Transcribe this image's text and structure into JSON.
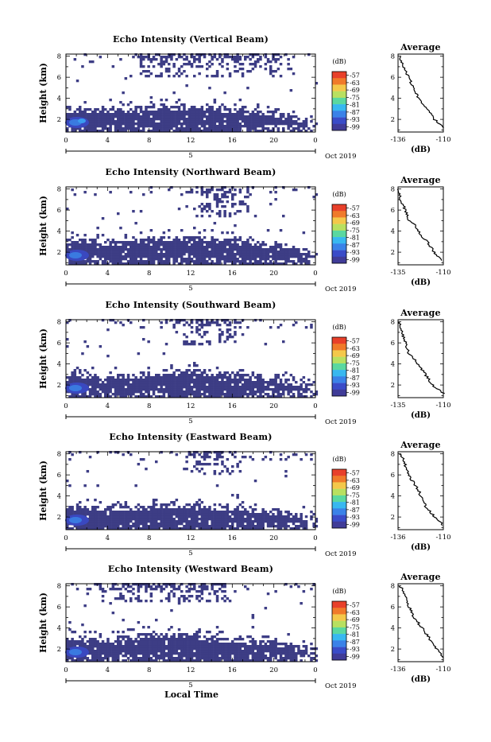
{
  "figure": {
    "xlabel": "Local Time",
    "month_label": "Oct 2019",
    "day_label": "5"
  },
  "chart_data": [
    {
      "type": "heatmap",
      "title": "Echo Intensity (Vertical Beam)",
      "ylabel": "Height (km)",
      "xlabel": "Local Time",
      "xlim": [
        0,
        24
      ],
      "ylim": [
        0.8,
        8.2
      ],
      "xticks": [
        "0",
        "4",
        "8",
        "12",
        "16",
        "20",
        "0"
      ],
      "yticks": [
        "2",
        "4",
        "6",
        "8"
      ],
      "colorbar": {
        "unit": "(dB)",
        "ticks": [
          "-57",
          "-63",
          "-69",
          "-75",
          "-81",
          "-87",
          "-93",
          "-99"
        ],
        "range": [
          -102,
          -54
        ]
      },
      "layers": [
        {
          "name": "low-cloud",
          "x_start": 0,
          "x_end": 23.5,
          "top_km": [
            3.2,
            3.1,
            3.0,
            3.1,
            3.3,
            3.4,
            3.4,
            3.3,
            3.1,
            2.9,
            2.8,
            2.4,
            1.9
          ]
        },
        {
          "name": "upper-cloud",
          "x_start": 6.2,
          "x_end": 22.0,
          "bottom_km": 6.0,
          "top_km": 8.0
        }
      ],
      "avg_profile": {
        "title": "Average",
        "xlabel": "(dB)",
        "xlim": [
          -136,
          -110
        ],
        "xticks": [
          "-136",
          "-110"
        ],
        "ylim": [
          0.8,
          8.2
        ],
        "yticks": [
          "2",
          "4",
          "6",
          "8"
        ],
        "height_km": [
          1.2,
          2.0,
          3.0,
          4.0,
          5.0,
          6.0,
          6.8,
          7.5,
          8.0
        ],
        "values_db": [
          -110,
          -115,
          -119,
          -124,
          -127,
          -130,
          -132.5,
          -134,
          -135
        ]
      }
    },
    {
      "type": "heatmap",
      "title": "Echo Intensity (Northward Beam)",
      "ylabel": "Height (km)",
      "xlabel": "Local Time",
      "xlim": [
        0,
        24
      ],
      "ylim": [
        0.8,
        8.2
      ],
      "xticks": [
        "0",
        "4",
        "8",
        "12",
        "16",
        "20",
        "0"
      ],
      "yticks": [
        "2",
        "4",
        "6",
        "8"
      ],
      "colorbar": {
        "unit": "(dB)",
        "ticks": [
          "-57",
          "-63",
          "-69",
          "-75",
          "-81",
          "-87",
          "-93",
          "-99"
        ],
        "range": [
          -102,
          -54
        ]
      },
      "layers": [
        {
          "name": "low-cloud",
          "x_start": 0,
          "x_end": 24,
          "top_km": [
            3.4,
            3.3,
            3.1,
            3.2,
            3.5,
            3.6,
            3.6,
            3.5,
            3.3,
            3.0,
            2.9,
            2.6,
            2.1
          ]
        },
        {
          "name": "upper-cloud",
          "x_start": 11.5,
          "x_end": 17.5,
          "bottom_km": 5.3,
          "top_km": 8.0
        }
      ],
      "avg_profile": {
        "title": "Average",
        "xlabel": "(dB)",
        "xlim": [
          -135,
          -110
        ],
        "xticks": [
          "-135",
          "-110"
        ],
        "ylim": [
          0.8,
          8.2
        ],
        "yticks": [
          "2",
          "4",
          "6",
          "8"
        ],
        "height_km": [
          1.2,
          2.0,
          3.0,
          4.0,
          4.5,
          5.0,
          6.0,
          7.0,
          8.0
        ],
        "values_db": [
          -111,
          -115,
          -119,
          -124,
          -125,
          -129,
          -131,
          -133.5,
          -135
        ]
      }
    },
    {
      "type": "heatmap",
      "title": "Echo Intensity (Southward Beam)",
      "ylabel": "Height (km)",
      "xlabel": "Local Time",
      "xlim": [
        0,
        24
      ],
      "ylim": [
        0.8,
        8.2
      ],
      "xticks": [
        "0",
        "4",
        "8",
        "12",
        "16",
        "20",
        "0"
      ],
      "yticks": [
        "2",
        "4",
        "6",
        "8"
      ],
      "colorbar": {
        "unit": "(dB)",
        "ticks": [
          "-57",
          "-63",
          "-69",
          "-75",
          "-81",
          "-87",
          "-93",
          "-99"
        ],
        "range": [
          -102,
          -54
        ]
      },
      "layers": [
        {
          "name": "low-cloud",
          "x_start": 0,
          "x_end": 24,
          "top_km": [
            3.3,
            3.2,
            3.0,
            3.1,
            3.3,
            3.5,
            3.5,
            3.4,
            3.2,
            2.9,
            2.8,
            2.5,
            2.0
          ]
        },
        {
          "name": "upper-cloud",
          "x_start": 10.5,
          "x_end": 17.5,
          "bottom_km": 5.8,
          "top_km": 8.0
        }
      ],
      "avg_profile": {
        "title": "Average",
        "xlabel": "(dB)",
        "xlim": [
          -135,
          -110
        ],
        "xticks": [
          "-135",
          "-110"
        ],
        "ylim": [
          0.8,
          8.2
        ],
        "yticks": [
          "2",
          "4",
          "6",
          "8"
        ],
        "height_km": [
          1.2,
          2.0,
          3.0,
          3.8,
          4.2,
          5.0,
          6.0,
          7.0,
          8.0
        ],
        "values_db": [
          -110,
          -116,
          -120,
          -123,
          -125,
          -129,
          -131,
          -133,
          -134.5
        ]
      }
    },
    {
      "type": "heatmap",
      "title": "Echo Intensity (Eastward Beam)",
      "ylabel": "Height (km)",
      "xlabel": "Local Time",
      "xlim": [
        0,
        24
      ],
      "ylim": [
        0.8,
        8.2
      ],
      "xticks": [
        "0",
        "4",
        "8",
        "12",
        "16",
        "20",
        "0"
      ],
      "yticks": [
        "2",
        "4",
        "6",
        "8"
      ],
      "colorbar": {
        "unit": "(dB)",
        "ticks": [
          "-57",
          "-63",
          "-69",
          "-75",
          "-81",
          "-87",
          "-93",
          "-99"
        ],
        "range": [
          -102,
          -54
        ]
      },
      "layers": [
        {
          "name": "low-cloud",
          "x_start": 0,
          "x_end": 24,
          "top_km": [
            3.2,
            3.1,
            3.0,
            3.0,
            3.2,
            3.4,
            3.4,
            3.3,
            3.1,
            2.9,
            2.8,
            2.4,
            2.0
          ]
        },
        {
          "name": "upper-cloud",
          "x_start": 11.0,
          "x_end": 17.0,
          "bottom_km": 6.0,
          "top_km": 8.0
        }
      ],
      "avg_profile": {
        "title": "Average",
        "xlabel": "(dB)",
        "xlim": [
          -136,
          -110
        ],
        "xticks": [
          "-136",
          "-110"
        ],
        "ylim": [
          0.8,
          8.2
        ],
        "yticks": [
          "2",
          "4",
          "6",
          "8"
        ],
        "height_km": [
          1.2,
          2.0,
          3.0,
          4.0,
          4.5,
          5.5,
          6.5,
          7.5,
          8.0
        ],
        "values_db": [
          -110,
          -115,
          -120,
          -123,
          -124,
          -128,
          -131,
          -133,
          -135
        ]
      }
    },
    {
      "type": "heatmap",
      "title": "Echo Intensity (Westward Beam)",
      "ylabel": "Height (km)",
      "xlabel": "Local Time",
      "xlim": [
        0,
        24
      ],
      "ylim": [
        0.8,
        8.2
      ],
      "xticks": [
        "0",
        "4",
        "8",
        "12",
        "16",
        "20",
        "0"
      ],
      "yticks": [
        "2",
        "4",
        "6",
        "8"
      ],
      "colorbar": {
        "unit": "(dB)",
        "ticks": [
          "-57",
          "-63",
          "-69",
          "-75",
          "-81",
          "-87",
          "-93",
          "-99"
        ],
        "range": [
          -102,
          -54
        ]
      },
      "layers": [
        {
          "name": "low-cloud",
          "x_start": 0,
          "x_end": 24,
          "top_km": [
            3.3,
            3.2,
            3.1,
            3.3,
            3.6,
            3.6,
            3.5,
            3.3,
            3.1,
            2.9,
            2.8,
            2.5,
            2.1
          ]
        },
        {
          "name": "upper-cloud",
          "x_start": 3.0,
          "x_end": 16.5,
          "bottom_km": 6.5,
          "top_km": 8.0
        }
      ],
      "avg_profile": {
        "title": "Average",
        "xlabel": "(dB)",
        "xlim": [
          -136,
          -110
        ],
        "xticks": [
          "-136",
          "-110"
        ],
        "ylim": [
          0.8,
          8.2
        ],
        "yticks": [
          "2",
          "4",
          "6",
          "8"
        ],
        "height_km": [
          1.2,
          2.0,
          3.0,
          4.0,
          5.0,
          5.5,
          6.5,
          7.5,
          8.0
        ],
        "values_db": [
          -110,
          -114,
          -118,
          -122,
          -127,
          -128,
          -131,
          -133,
          -135
        ]
      }
    }
  ]
}
